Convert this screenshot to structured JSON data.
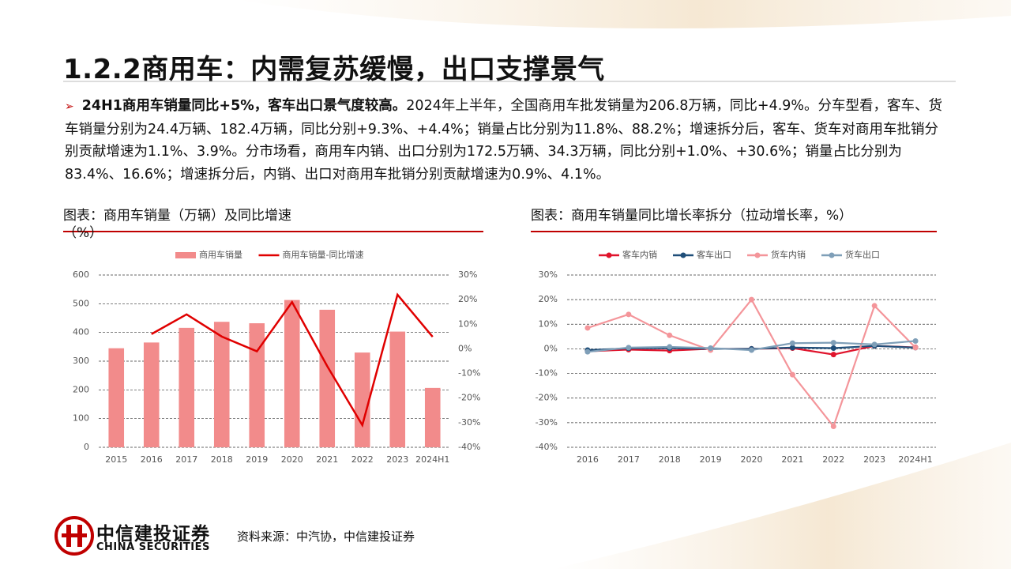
{
  "header": {
    "title": "1.2.2商用车：内需复苏缓慢，出口支撑景气"
  },
  "bullet": {
    "bold": "24H1商用车销量同比+5%，客车出口景气度较高。",
    "text": "2024年上半年，全国商用车批发销量为206.8万辆，同比+4.9%。分车型看，客车、货车销量分别为24.4万辆、182.4万辆，同比分别+9.3%、+4.4%；销量占比分别为11.8%、88.2%；增速拆分后，客车、货车对商用车批销分别贡献增速为1.1%、3.9%。分市场看，商用车内销、出口分别为172.5万辆、34.3万辆，同比分别+1.0%、+30.6%；销量占比分别为83.4%、16.6%；增速拆分后，内销、出口对商用车批销分别贡献增速为0.9%、4.1%。"
  },
  "chart_data": [
    {
      "type": "combo",
      "title": "图表：商用车销量（万辆）及同比增速（%）",
      "categories": [
        "2015",
        "2016",
        "2017",
        "2018",
        "2019",
        "2020",
        "2021",
        "2022",
        "2023",
        "2024H1"
      ],
      "series": [
        {
          "name": "商用车销量",
          "type": "bar",
          "color": "#f28b8b",
          "values": [
            345,
            365,
            416,
            437,
            432,
            513,
            479,
            330,
            403,
            206.8
          ]
        },
        {
          "name": "商用车销量-同比增速",
          "type": "line",
          "axis": "y2",
          "color": "#e00000",
          "values": [
            null,
            6,
            14,
            5,
            -1,
            19,
            -7,
            -31,
            22,
            4.9
          ]
        }
      ],
      "ylim": [
        0,
        600
      ],
      "yticks": [
        0,
        100,
        200,
        300,
        400,
        500,
        600
      ],
      "y2lim": [
        -40,
        30
      ],
      "y2ticks": [
        {
          "value": -40,
          "label": "-40%"
        },
        {
          "value": -30,
          "label": "-30%"
        },
        {
          "value": -20,
          "label": "-20%"
        },
        {
          "value": -10,
          "label": "-10%"
        },
        {
          "value": 0,
          "label": "0%"
        },
        {
          "value": 10,
          "label": "10%"
        },
        {
          "value": 20,
          "label": "20%"
        },
        {
          "value": 30,
          "label": "30%"
        }
      ],
      "grid": true,
      "legend": "top"
    },
    {
      "type": "line",
      "title": "图表：商用车销量同比增长率拆分（拉动增长率，%）",
      "categories": [
        "2016",
        "2017",
        "2018",
        "2019",
        "2020",
        "2021",
        "2022",
        "2023",
        "2024H1"
      ],
      "series": [
        {
          "name": "客车内销",
          "color": "#e0142c",
          "values": [
            -1,
            -0.3,
            -0.7,
            0,
            0,
            0.3,
            -2.3,
            1.2,
            0.6
          ]
        },
        {
          "name": "客车出口",
          "color": "#1f4e79",
          "values": [
            -0.5,
            0.2,
            0.3,
            0,
            0,
            0.5,
            0.3,
            1.2,
            0.5
          ]
        },
        {
          "name": "货车内销",
          "color": "#f4959a",
          "values": [
            8.5,
            14,
            5.5,
            -0.5,
            20,
            -10.5,
            -31.5,
            17.5,
            0.5
          ]
        },
        {
          "name": "货车出口",
          "color": "#7f9fb8",
          "values": [
            -1.2,
            0.5,
            0.8,
            0.3,
            -0.5,
            2.3,
            2.5,
            1.8,
            3.2
          ]
        }
      ],
      "ylim": [
        -40,
        30
      ],
      "yticks": [
        {
          "value": -40,
          "label": "-40%"
        },
        {
          "value": -30,
          "label": "-30%"
        },
        {
          "value": -20,
          "label": "-20%"
        },
        {
          "value": -10,
          "label": "-10%"
        },
        {
          "value": 0,
          "label": "0%"
        },
        {
          "value": 10,
          "label": "10%"
        },
        {
          "value": 20,
          "label": "20%"
        },
        {
          "value": 30,
          "label": "30%"
        }
      ],
      "grid": true,
      "legend": "top"
    }
  ],
  "footer": {
    "source": "资料来源：中汽协，中信建投证券",
    "logo_cn": "中信建投证券",
    "logo_en": "CHINA SECURITIES"
  }
}
